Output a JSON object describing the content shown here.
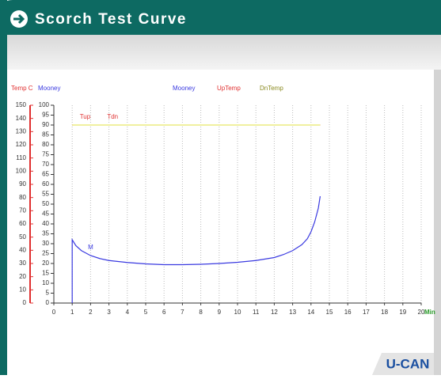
{
  "header": {
    "title": "Scorch Test Curve"
  },
  "footer": {
    "logo": "U-CAN"
  },
  "chart_data": {
    "type": "line",
    "y_label": "Mooney",
    "y2_label": "Temp C",
    "x_label": "Min",
    "xlim": [
      0,
      20
    ],
    "xticks": [
      0,
      1,
      2,
      3,
      4,
      5,
      6,
      7,
      8,
      9,
      10,
      11,
      12,
      13,
      14,
      15,
      16,
      17,
      18,
      19,
      20
    ],
    "ylim": [
      0,
      100
    ],
    "yticks": [
      0,
      5,
      10,
      15,
      20,
      25,
      30,
      35,
      40,
      45,
      50,
      55,
      60,
      65,
      70,
      75,
      80,
      85,
      90,
      95,
      100
    ],
    "y2lim": [
      0,
      150
    ],
    "y2ticks": [
      0,
      10,
      20,
      30,
      40,
      50,
      60,
      70,
      80,
      90,
      100,
      110,
      120,
      130,
      140,
      150
    ],
    "grid": true,
    "series": [
      {
        "name": "Mooney",
        "color": "#3a3ae0",
        "x": [
          1,
          1,
          1.2,
          1.5,
          2,
          2.5,
          3,
          4,
          5,
          6,
          7,
          8,
          9,
          10,
          11,
          12,
          12.5,
          13,
          13.5,
          13.8,
          14,
          14.2,
          14.4,
          14.5
        ],
        "values": [
          0,
          32,
          29,
          26.5,
          24,
          22.5,
          21.5,
          20.5,
          19.8,
          19.4,
          19.4,
          19.6,
          20,
          20.6,
          21.5,
          23,
          24.5,
          26.5,
          29.5,
          32.5,
          36,
          41,
          48,
          54
        ]
      },
      {
        "name": "UpTemp",
        "color": "#e03030",
        "axis": "y2",
        "x": [
          1,
          14.5
        ],
        "values": [
          135,
          135
        ]
      },
      {
        "name": "DnTemp",
        "color": "#f0f0a0",
        "axis": "y2",
        "x": [
          1,
          14.5
        ],
        "values": [
          135,
          135
        ]
      }
    ],
    "annotations": [
      {
        "text": "Tup",
        "x": 1.7,
        "y": 94,
        "color": "#e03030"
      },
      {
        "text": "Tdn",
        "x": 3.2,
        "y": 94,
        "color": "#e03030"
      },
      {
        "text": "M",
        "x": 2.0,
        "y": 28,
        "color": "#3a3ae0"
      }
    ]
  }
}
